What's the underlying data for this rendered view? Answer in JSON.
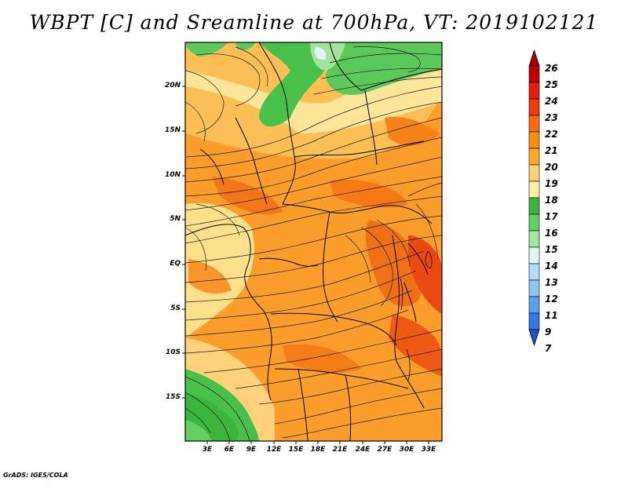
{
  "title": "WBPT [C] and Sreamline at 700hPa, VT: 2019102121",
  "credit": "GrADS: IGES/COLA",
  "map": {
    "lat_labels": [
      "20N",
      "15N",
      "10N",
      "5N",
      "EQ",
      "5S",
      "10S",
      "15S"
    ],
    "lon_labels": [
      "3E",
      "6E",
      "9E",
      "12E",
      "15E",
      "18E",
      "21E",
      "24E",
      "27E",
      "30E",
      "33E"
    ]
  },
  "colorbar": {
    "labels": [
      "26",
      "25",
      "24",
      "23",
      "22",
      "21",
      "20",
      "19",
      "18",
      "17",
      "16",
      "15",
      "14",
      "13",
      "12",
      "11",
      "9",
      "7"
    ],
    "colors": [
      "#a50000",
      "#c00000",
      "#e01e0e",
      "#ee3b0e",
      "#f86a0e",
      "#fa8c0f",
      "#fca72e",
      "#fdd27a",
      "#fff0a6",
      "#39b539",
      "#62d162",
      "#a4e6a0",
      "#def7f5",
      "#b6dcf7",
      "#8ec4f2",
      "#5aa0eb",
      "#3579e0",
      "#1d55c8"
    ]
  }
}
